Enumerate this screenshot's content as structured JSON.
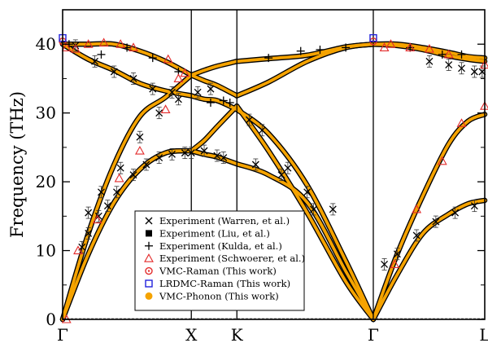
{
  "chart_data": {
    "type": "line",
    "ylabel": "Frequency (THz)",
    "ylim": [
      0,
      45
    ],
    "yticks": [
      0,
      10,
      20,
      30,
      40
    ],
    "x_path_labels": [
      "Γ",
      "X",
      "K",
      "Γ",
      "L"
    ],
    "x_path_positions": [
      0,
      1,
      1.354,
      2.414,
      3.28
    ],
    "vertical_lines_at": [
      1,
      1.354,
      2.414
    ],
    "grid": false,
    "legend_placement": "bottom-center",
    "band_color": "#f5a300",
    "series": [
      {
        "name": "VMC-Phonon (This work)",
        "kind": "band",
        "x": [
          0,
          0.2,
          0.4,
          0.6,
          0.8,
          1.0
        ],
        "y": [
          0,
          9.5,
          17,
          21.8,
          24.2,
          24.5
        ]
      },
      {
        "name": "VMC-Phonon (This work)",
        "kind": "band",
        "x": [
          0,
          0.2,
          0.4,
          0.6,
          0.8,
          1.0
        ],
        "y": [
          0,
          12.5,
          22.5,
          29.5,
          32.3,
          35.5
        ]
      },
      {
        "name": "VMC-Phonon (This work)",
        "kind": "band",
        "x": [
          0,
          0.2,
          0.4,
          0.6,
          0.8,
          1.0
        ],
        "y": [
          40,
          40,
          40,
          39,
          37.5,
          35.5
        ]
      },
      {
        "name": "VMC-Phonon (This work)",
        "kind": "band",
        "x": [
          0,
          0.2,
          0.4,
          0.6,
          0.8,
          1.0
        ],
        "y": [
          40,
          37.8,
          36.2,
          34.3,
          33.2,
          32.5
        ]
      },
      {
        "name": "VMC-Phonon (This work)",
        "kind": "band",
        "x": [
          1.0,
          1.1,
          1.2,
          1.354
        ],
        "y": [
          24.5,
          24.0,
          23.6,
          22.6
        ]
      },
      {
        "name": "VMC-Phonon (This work)",
        "kind": "band",
        "x": [
          1.0,
          1.1,
          1.2,
          1.354
        ],
        "y": [
          24.5,
          26.0,
          28.0,
          31.0
        ]
      },
      {
        "name": "VMC-Phonon (This work)",
        "kind": "band",
        "x": [
          1.0,
          1.1,
          1.2,
          1.354
        ],
        "y": [
          32.5,
          32.0,
          31.8,
          30.5
        ]
      },
      {
        "name": "VMC-Phonon (This work)",
        "kind": "band",
        "x": [
          1.0,
          1.1,
          1.2,
          1.354
        ],
        "y": [
          35.5,
          34.7,
          34.0,
          32.5
        ]
      },
      {
        "name": "VMC-Phonon (This work)",
        "kind": "band",
        "x": [
          1.0,
          1.1,
          1.2,
          1.354
        ],
        "y": [
          35.5,
          36.2,
          36.8,
          37.5
        ]
      },
      {
        "name": "VMC-Phonon (This work)",
        "kind": "band",
        "x": [
          1.354,
          1.6,
          1.9,
          2.2,
          2.414
        ],
        "y": [
          22.6,
          21,
          17,
          7,
          0
        ]
      },
      {
        "name": "VMC-Phonon (This work)",
        "kind": "band",
        "x": [
          1.354,
          1.6,
          1.9,
          2.2,
          2.414
        ],
        "y": [
          31.0,
          24.5,
          15.5,
          5.5,
          0
        ]
      },
      {
        "name": "VMC-Phonon (This work)",
        "kind": "band",
        "x": [
          1.354,
          1.6,
          1.9,
          2.2,
          2.414
        ],
        "y": [
          30.5,
          27,
          19.5,
          8.5,
          0
        ]
      },
      {
        "name": "VMC-Phonon (This work)",
        "kind": "band",
        "x": [
          1.354,
          1.6,
          1.9,
          2.2,
          2.414
        ],
        "y": [
          32.5,
          34.5,
          37.5,
          39.5,
          40
        ]
      },
      {
        "name": "VMC-Phonon (This work)",
        "kind": "band",
        "x": [
          1.354,
          1.6,
          1.9,
          2.2,
          2.414
        ],
        "y": [
          37.5,
          37.9,
          38.4,
          39.6,
          40
        ]
      },
      {
        "name": "VMC-Phonon (This work)",
        "kind": "band",
        "x": [
          2.414,
          2.6,
          2.8,
          3.0,
          3.15,
          3.28
        ],
        "y": [
          0,
          6.5,
          12.5,
          15.3,
          16.8,
          17.3
        ]
      },
      {
        "name": "VMC-Phonon (This work)",
        "kind": "band",
        "x": [
          2.414,
          2.6,
          2.8,
          3.0,
          3.15,
          3.28
        ],
        "y": [
          0,
          9.5,
          18,
          25.5,
          28.8,
          29.8
        ]
      },
      {
        "name": "VMC-Phonon (This work)",
        "kind": "band",
        "x": [
          2.414,
          2.6,
          2.8,
          3.0,
          3.15,
          3.28
        ],
        "y": [
          40,
          39.8,
          39.2,
          38.3,
          37.8,
          37.5
        ]
      },
      {
        "name": "VMC-Phonon (This work)",
        "kind": "band",
        "x": [
          2.414,
          2.6,
          2.8,
          3.0,
          3.15,
          3.28
        ],
        "y": [
          40,
          40,
          39.5,
          38.8,
          38.2,
          38
        ]
      },
      {
        "name": "Experiment (Warren, et al.)",
        "kind": "exp",
        "marker": "x",
        "color": "#000000",
        "x": [
          0.15,
          0.2,
          0.28,
          0.35,
          0.42,
          0.55,
          0.65,
          0.75,
          0.85,
          0.95,
          1.0,
          1.1,
          1.2,
          1.25,
          1.5,
          1.7,
          1.9,
          2.1,
          2.5,
          2.6,
          2.75,
          2.9,
          3.05,
          3.2,
          0.2,
          0.3,
          0.45,
          0.6,
          0.75,
          0.9,
          1.45,
          1.55,
          1.75,
          1.95,
          0.1,
          0.25,
          0.4,
          0.55,
          0.7,
          0.85,
          1.05,
          1.15,
          2.85,
          3.0,
          3.1,
          3.2,
          3.26
        ],
        "y": [
          10.5,
          12.5,
          15,
          16.5,
          18.5,
          21,
          22.5,
          23.5,
          24,
          24.2,
          24.2,
          24.5,
          23.8,
          23.5,
          22.5,
          21,
          18.5,
          16,
          8,
          9.5,
          12.2,
          14.2,
          15.5,
          16.5,
          15.5,
          18.5,
          22,
          26.5,
          30,
          32,
          29,
          27.5,
          22,
          16,
          39.8,
          37.5,
          36,
          35,
          33.5,
          33,
          33,
          33.5,
          37.5,
          37,
          36.5,
          36,
          36
        ]
      },
      {
        "name": "Experiment (Liu, et al.)",
        "kind": "exp",
        "marker": "square",
        "color": "#000000",
        "x": [],
        "y": []
      },
      {
        "name": "Experiment (Kulda, et al.)",
        "kind": "exp",
        "marker": "plus",
        "color": "#000000",
        "x": [
          0.05,
          0.3,
          0.5,
          0.7,
          0.9,
          1.15,
          1.25,
          1.3,
          1.6,
          1.85,
          2.0,
          2.2,
          2.7,
          2.95,
          3.1
        ],
        "y": [
          40,
          38.5,
          39.5,
          38,
          36,
          31.5,
          31.8,
          31.5,
          38,
          39,
          39.2,
          39.5,
          39.5,
          38.5,
          38.5
        ]
      },
      {
        "name": "Experiment (Schwoerer, et al.)",
        "kind": "exp",
        "marker": "triangle",
        "color": "#e32b2b",
        "x": [
          0.03,
          0.1,
          0.2,
          0.32,
          0.45,
          0.55,
          0.82,
          0.95,
          0.03,
          0.12,
          0.27,
          0.44,
          0.6,
          0.8,
          0.9,
          2.58,
          2.75,
          2.95,
          3.1,
          3.28,
          2.55,
          2.7,
          2.85,
          3.0,
          3.28,
          2.5
        ],
        "y": [
          39.5,
          39.3,
          40,
          40.2,
          40,
          39.5,
          37.8,
          35.8,
          0,
          10,
          14.5,
          20.5,
          24.5,
          30.5,
          35,
          8,
          16,
          23,
          28.5,
          31,
          40,
          39.5,
          39.3,
          38.5,
          37,
          39.5
        ]
      },
      {
        "name": "VMC-Raman (This work)",
        "kind": "exp",
        "marker": "circle",
        "color": "#e32b2b",
        "x": [
          0.0,
          2.414
        ],
        "y": [
          40.4,
          40.4
        ]
      },
      {
        "name": "LRDMC-Raman (This work)",
        "kind": "exp",
        "marker": "open-square",
        "color": "#2222dd",
        "x": [
          0.0,
          2.414
        ],
        "y": [
          40.9,
          40.9
        ]
      }
    ]
  }
}
